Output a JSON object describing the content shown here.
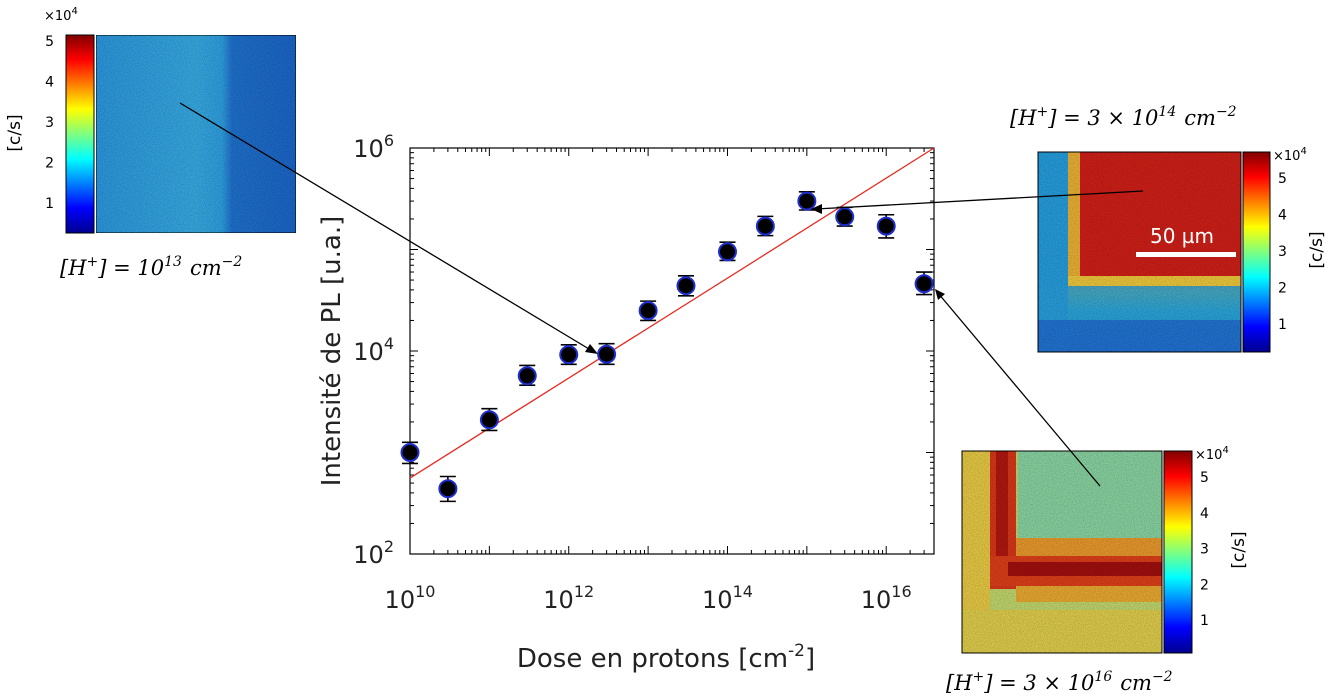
{
  "chart_data": {
    "type": "scatter",
    "xlabel": "Dose en protons [cm",
    "xlabel_sup": "-2",
    "xlabel_end": "]",
    "ylabel": "Intensité de PL [u.a.]",
    "xscale": "log",
    "yscale": "log",
    "xlim": [
      10000000000.0,
      4e+16
    ],
    "ylim": [
      100,
      1000000
    ],
    "x_ticks": [
      {
        "base": "10",
        "exp": "10",
        "value": 10000000000.0
      },
      {
        "base": "10",
        "exp": "12",
        "value": 1000000000000.0
      },
      {
        "base": "10",
        "exp": "14",
        "value": 100000000000000.0
      },
      {
        "base": "10",
        "exp": "16",
        "value": 1e+16
      }
    ],
    "y_ticks": [
      {
        "base": "10",
        "exp": "2",
        "value": 100
      },
      {
        "base": "10",
        "exp": "4",
        "value": 10000
      },
      {
        "base": "10",
        "exp": "6",
        "value": 1000000
      }
    ],
    "points": [
      {
        "x": 10000000000.0,
        "y": 1000,
        "lo": 780,
        "hi": 1260
      },
      {
        "x": 30000000000.0,
        "y": 440,
        "lo": 330,
        "hi": 580
      },
      {
        "x": 100000000000.0,
        "y": 2100,
        "lo": 1650,
        "hi": 2700
      },
      {
        "x": 300000000000.0,
        "y": 5700,
        "lo": 4600,
        "hi": 7200
      },
      {
        "x": 1000000000000.0,
        "y": 9200,
        "lo": 7400,
        "hi": 11500
      },
      {
        "x": 3000000000000.0,
        "y": 9300,
        "lo": 7400,
        "hi": 11800
      },
      {
        "x": 10000000000000.0,
        "y": 25000,
        "lo": 20000,
        "hi": 31000
      },
      {
        "x": 30000000000000.0,
        "y": 44000,
        "lo": 35000,
        "hi": 55000
      },
      {
        "x": 100000000000000.0,
        "y": 95000,
        "lo": 78000,
        "hi": 118000
      },
      {
        "x": 300000000000000.0,
        "y": 170000,
        "lo": 137000,
        "hi": 212000
      },
      {
        "x": 1000000000000000.0,
        "y": 300000,
        "lo": 245000,
        "hi": 370000
      },
      {
        "x": 3000000000000000.0,
        "y": 210000,
        "lo": 170000,
        "hi": 260000
      },
      {
        "x": 1e+16,
        "y": 170000,
        "lo": 130000,
        "hi": 220000
      },
      {
        "x": 3e+16,
        "y": 46000,
        "lo": 36000,
        "hi": 60000
      }
    ],
    "fit_line": {
      "x": [
        10000000000.0,
        4e+16
      ],
      "y": [
        560,
        1000000
      ],
      "color": "#e82a20"
    },
    "marker_fill": "#000000",
    "marker_edge": "#1f2fcf",
    "grid": false
  },
  "insets": {
    "left": {
      "caption_main": "[H",
      "caption_sup": "+",
      "caption_eq": "] = 10",
      "caption_exp": "13",
      "caption_unit": "cm",
      "caption_unit_exp": "−2",
      "colorbar_multiplier": "×10",
      "colorbar_multiplier_exp": "4",
      "colorbar_ticks": [
        "5",
        "4",
        "3",
        "2",
        "1"
      ],
      "colorbar_label": "[c/s]"
    },
    "right_top": {
      "caption_main": "[H",
      "caption_sup": "+",
      "caption_eq": "] = 3 × 10",
      "caption_exp": "14",
      "caption_unit": "cm",
      "caption_unit_exp": "−2",
      "colorbar_multiplier": "×10",
      "colorbar_multiplier_exp": "4",
      "colorbar_ticks": [
        "5",
        "4",
        "3",
        "2",
        "1"
      ],
      "colorbar_label": "[c/s]",
      "scale_bar_label": "50 µm"
    },
    "right_bottom": {
      "caption_main": "[H",
      "caption_sup": "+",
      "caption_eq": "] = 3 × 10",
      "caption_exp": "16",
      "caption_unit": "cm",
      "caption_unit_exp": "−2",
      "colorbar_multiplier": "×10",
      "colorbar_multiplier_exp": "4",
      "colorbar_ticks": [
        "5",
        "4",
        "3",
        "2",
        "1"
      ],
      "colorbar_label": "[c/s]"
    }
  }
}
